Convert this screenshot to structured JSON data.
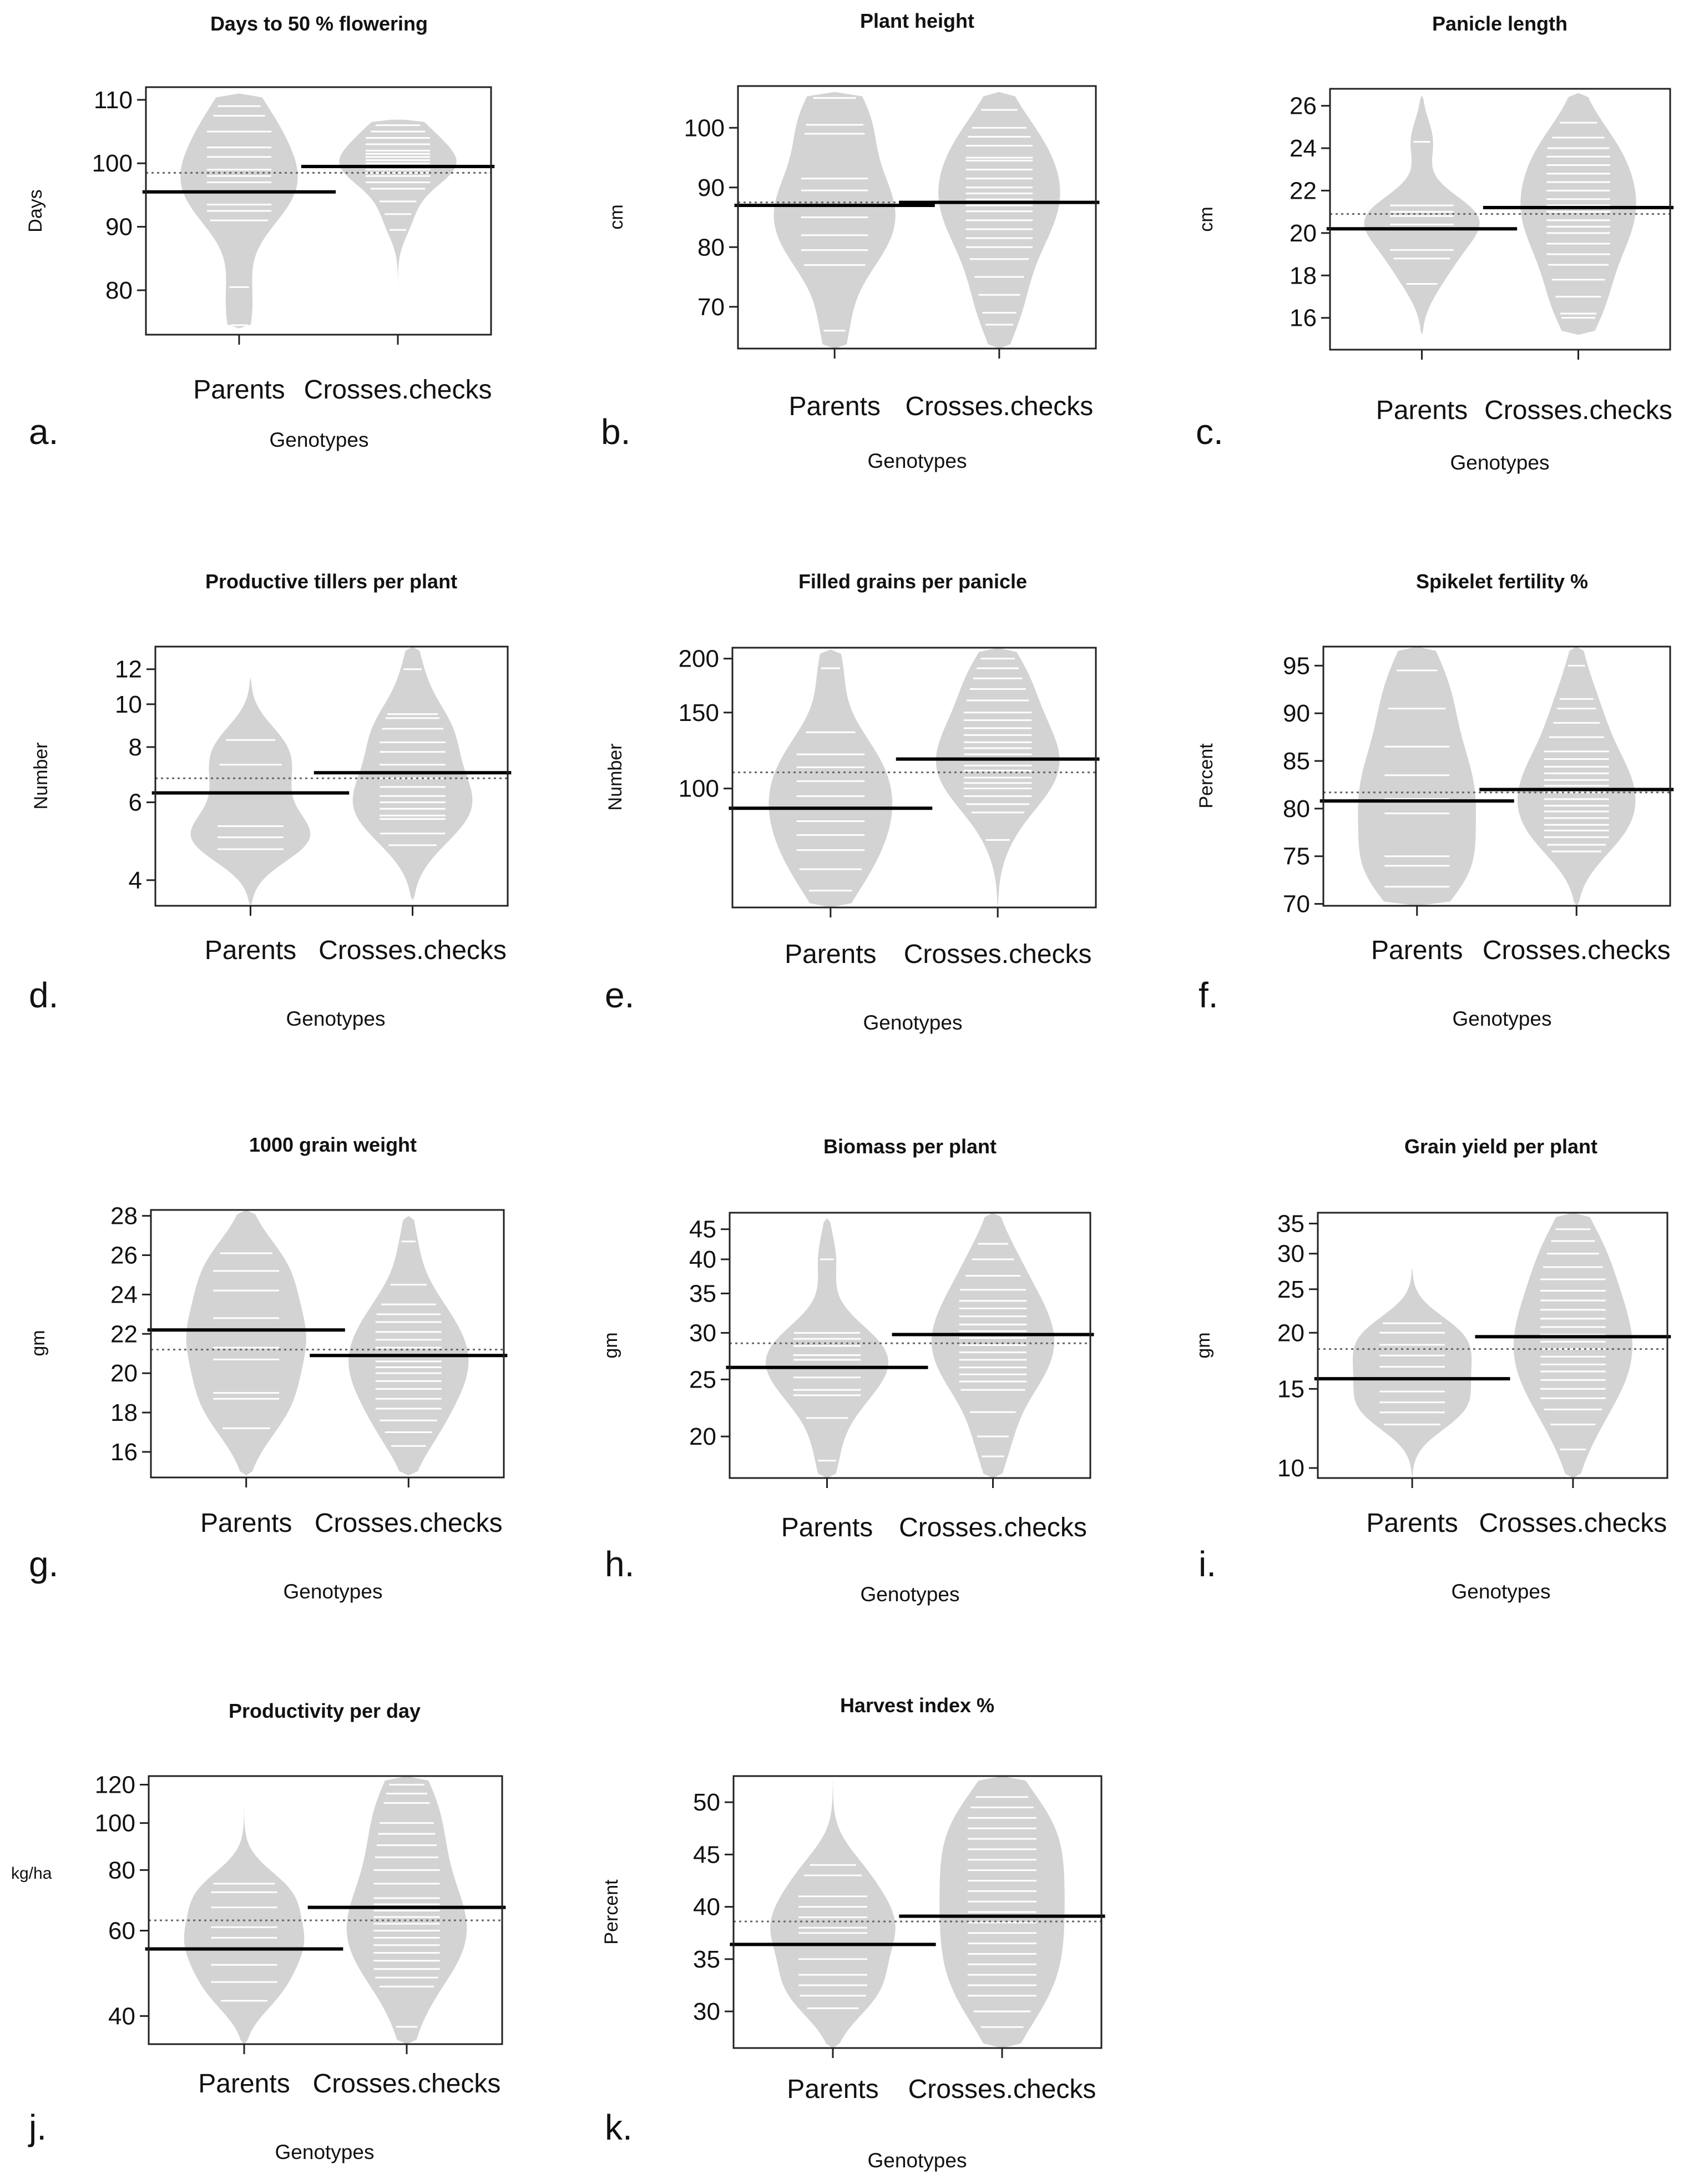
{
  "figure": {
    "xlabel": "Genotypes",
    "categories": [
      "Parents",
      "Crosses.checks"
    ]
  },
  "chart_data": [
    {
      "type": "beanplot",
      "label": "a.",
      "title": "Days to 50 % flowering",
      "ylabel": "Days",
      "ylim": [
        73,
        112
      ],
      "ticks": [
        80,
        90,
        100,
        110
      ],
      "overall_mean": 98.5,
      "groups": [
        {
          "name": "Parents",
          "mean": 95.5,
          "range": [
            74,
            111
          ],
          "points": [
            74.5,
            80.5,
            91,
            92.5,
            93.5,
            95.5,
            97,
            98,
            99,
            101,
            102.5,
            105,
            107.5,
            109
          ]
        },
        {
          "name": "Crosses.checks",
          "mean": 99.5,
          "range": [
            78,
            107
          ],
          "points": [
            89.5,
            92,
            94,
            96,
            97,
            98,
            98.5,
            99,
            99.5,
            100,
            100.5,
            101,
            101.5,
            102,
            103,
            104,
            105,
            106,
            107
          ]
        }
      ]
    },
    {
      "type": "beanplot",
      "label": "b.",
      "title": "Plant height",
      "ylabel": "cm",
      "ylim": [
        63,
        107
      ],
      "ticks": [
        70,
        80,
        90,
        100
      ],
      "overall_mean": 87.5,
      "groups": [
        {
          "name": "Parents",
          "mean": 87,
          "range": [
            63,
            106
          ],
          "points": [
            66,
            77,
            79.5,
            82,
            85,
            87,
            89.5,
            91.5,
            99,
            100.5,
            105
          ]
        },
        {
          "name": "Crosses.checks",
          "mean": 87.5,
          "range": [
            63,
            106
          ],
          "points": [
            67,
            69,
            72,
            75,
            78,
            80,
            81.5,
            83,
            84.5,
            86,
            87,
            88,
            89,
            90,
            91.5,
            93,
            94.5,
            95,
            97,
            98.5,
            100,
            103
          ]
        }
      ]
    },
    {
      "type": "beanplot",
      "label": "c.",
      "title": "Panicle length",
      "ylabel": "cm",
      "ylim": [
        14.5,
        26.8
      ],
      "ticks": [
        16,
        18,
        20,
        22,
        24,
        26
      ],
      "overall_mean": 20.9,
      "groups": [
        {
          "name": "Parents",
          "mean": 20.2,
          "range": [
            15.2,
            26.5
          ],
          "points": [
            17.6,
            18.8,
            19.2,
            20.2,
            20.4,
            20.8,
            21,
            21.3,
            24.3
          ]
        },
        {
          "name": "Crosses.checks",
          "mean": 21.2,
          "range": [
            15.2,
            26.6
          ],
          "points": [
            16,
            16.2,
            17,
            17.8,
            18.5,
            19,
            19.5,
            20,
            20.3,
            20.6,
            21,
            21.3,
            21.6,
            22,
            22.4,
            22.8,
            23.2,
            23.6,
            24,
            24.5,
            25.2
          ]
        }
      ]
    },
    {
      "type": "beanplot",
      "label": "d.",
      "title": "Productive tillers per plant",
      "ylabel": "Number",
      "ylim": [
        3.5,
        13.5
      ],
      "ticks": [
        4,
        6,
        8,
        10,
        12
      ],
      "log": true,
      "overall_mean": 6.8,
      "groups": [
        {
          "name": "Parents",
          "mean": 6.3,
          "range": [
            3.5,
            11.5
          ],
          "points": [
            4.7,
            5,
            5.3,
            6.3,
            7.3,
            8.3
          ]
        },
        {
          "name": "Crosses.checks",
          "mean": 7,
          "range": [
            3.6,
            13.5
          ],
          "points": [
            4.8,
            5.1,
            5.5,
            5.6,
            5.8,
            6,
            6.2,
            6.5,
            6.8,
            7.3,
            7.8,
            8.2,
            8.8,
            9.3,
            9.5,
            12
          ]
        }
      ]
    },
    {
      "type": "beanplot",
      "label": "e.",
      "title": "Filled grains per panicle",
      "ylabel": "Number",
      "ylim": [
        53,
        212
      ],
      "ticks": [
        100,
        150,
        200
      ],
      "log": true,
      "overall_mean": 109,
      "groups": [
        {
          "name": "Parents",
          "mean": 90,
          "range": [
            53,
            210
          ],
          "points": [
            58,
            65,
            72,
            78,
            84,
            90,
            96,
            104,
            112,
            120,
            135,
            190
          ]
        },
        {
          "name": "Crosses.checks",
          "mean": 117,
          "range": [
            53,
            212
          ],
          "points": [
            76,
            88,
            92,
            96,
            100,
            103,
            106,
            110,
            113,
            117,
            120,
            124,
            128,
            133,
            138,
            144,
            150,
            160,
            170,
            180,
            190,
            200
          ]
        }
      ]
    },
    {
      "type": "beanplot",
      "label": "f.",
      "title": "Spikelet fertility %",
      "ylabel": "Percent",
      "ylim": [
        69.8,
        97
      ],
      "ticks": [
        70,
        75,
        80,
        85,
        90,
        95
      ],
      "overall_mean": 81.7,
      "groups": [
        {
          "name": "Parents",
          "mean": 80.8,
          "range": [
            69.8,
            97
          ],
          "points": [
            71.8,
            74,
            75,
            79.5,
            81,
            83.5,
            86.5,
            90.5,
            94.5
          ]
        },
        {
          "name": "Crosses.checks",
          "mean": 82,
          "range": [
            69.8,
            97
          ],
          "points": [
            75.5,
            76.2,
            77,
            77.7,
            78.3,
            79,
            79.7,
            80.3,
            81,
            81.7,
            82.4,
            83,
            83.7,
            84.4,
            85.2,
            86,
            87.5,
            89,
            90.5,
            91.5,
            95
          ]
        }
      ]
    },
    {
      "type": "beanplot",
      "label": "g.",
      "title": "1000 grain weight",
      "ylabel": "gm",
      "ylim": [
        14.7,
        28.3
      ],
      "ticks": [
        16,
        18,
        20,
        22,
        24,
        26,
        28
      ],
      "overall_mean": 21.2,
      "groups": [
        {
          "name": "Parents",
          "mean": 22.2,
          "range": [
            14.8,
            28.3
          ],
          "points": [
            17.2,
            18.7,
            19,
            20.7,
            21.3,
            22.2,
            22.8,
            24.2,
            25.2,
            26.1
          ]
        },
        {
          "name": "Crosses.checks",
          "mean": 20.9,
          "range": [
            14.8,
            28
          ],
          "points": [
            16.3,
            17,
            17.6,
            18.2,
            18.7,
            19.2,
            19.6,
            20,
            20.3,
            20.6,
            20.9,
            21.3,
            21.7,
            22.1,
            22.6,
            23,
            23.5,
            24.5,
            26.7
          ]
        }
      ]
    },
    {
      "type": "beanplot",
      "label": "h.",
      "title": "Biomass per plant",
      "ylabel": "gm",
      "ylim": [
        17,
        48
      ],
      "ticks": [
        20,
        25,
        30,
        35,
        40,
        45
      ],
      "log": true,
      "overall_mean": 28.8,
      "groups": [
        {
          "name": "Parents",
          "mean": 26.2,
          "range": [
            17,
            47
          ],
          "points": [
            18.2,
            21.5,
            23.5,
            24,
            25.2,
            26.2,
            27,
            27.5,
            28.5,
            29.3,
            30,
            40
          ]
        },
        {
          "name": "Crosses.checks",
          "mean": 29.8,
          "range": [
            17,
            48
          ],
          "points": [
            18.5,
            20,
            22,
            24,
            24.8,
            25.5,
            26.2,
            27,
            27.8,
            28.6,
            29.4,
            30.2,
            31,
            32,
            33,
            34,
            35.5,
            37.5,
            40,
            42.5
          ]
        }
      ]
    },
    {
      "type": "beanplot",
      "label": "i.",
      "title": "Grain yield per plant",
      "ylabel": "gm",
      "ylim": [
        9.5,
        37
      ],
      "ticks": [
        10,
        15,
        20,
        25,
        30,
        35
      ],
      "log": true,
      "overall_mean": 18.4,
      "groups": [
        {
          "name": "Parents",
          "mean": 15.8,
          "range": [
            9.5,
            28
          ],
          "points": [
            12.5,
            13.3,
            14,
            14.8,
            15.8,
            16.8,
            17.8,
            18.8,
            20,
            21
          ]
        },
        {
          "name": "Crosses.checks",
          "mean": 19.6,
          "range": [
            9.5,
            37
          ],
          "points": [
            11,
            12.5,
            13.5,
            14.3,
            15,
            15.7,
            16.4,
            17,
            17.7,
            18.4,
            19.1,
            19.8,
            20.6,
            21.5,
            22.5,
            23.6,
            24.8,
            26.3,
            28,
            30,
            32,
            34
          ]
        }
      ]
    },
    {
      "type": "beanplot",
      "label": "j.",
      "title": "Productivity per day",
      "ylabel": "kg/ha",
      "ylim": [
        35,
        125
      ],
      "ticks": [
        40,
        60,
        80,
        100,
        120
      ],
      "log": true,
      "overall_mean": 63,
      "groups": [
        {
          "name": "Parents",
          "mean": 55,
          "range": [
            35,
            110
          ],
          "points": [
            43,
            47,
            51,
            55,
            58,
            61,
            67,
            72,
            75
          ]
        },
        {
          "name": "Crosses.checks",
          "mean": 67,
          "range": [
            35,
            125
          ],
          "points": [
            38,
            46,
            48,
            50,
            52,
            54,
            56,
            58,
            60,
            62,
            64,
            66,
            68,
            70,
            75,
            80,
            85,
            90,
            95,
            100,
            110,
            115,
            120
          ]
        }
      ]
    },
    {
      "type": "beanplot",
      "label": "k.",
      "title": "Harvest index %",
      "ylabel": "Percent",
      "ylim": [
        26.5,
        52.5
      ],
      "ticks": [
        30,
        35,
        40,
        45,
        50
      ],
      "overall_mean": 38.6,
      "groups": [
        {
          "name": "Parents",
          "mean": 36.4,
          "range": [
            26.5,
            52.5
          ],
          "points": [
            30.3,
            31.5,
            32.5,
            33.5,
            35,
            36.4,
            37.5,
            38,
            39,
            40,
            41,
            43,
            44
          ]
        },
        {
          "name": "Crosses.checks",
          "mean": 39.1,
          "range": [
            26.5,
            52.5
          ],
          "points": [
            28.5,
            30,
            31.5,
            32.5,
            33.5,
            34.5,
            35.5,
            36.5,
            37.5,
            38.5,
            39.5,
            40.5,
            41.5,
            42.5,
            43.5,
            44.5,
            45.5,
            46.5,
            47.5,
            48.5,
            49.5,
            50.5
          ]
        }
      ]
    }
  ]
}
